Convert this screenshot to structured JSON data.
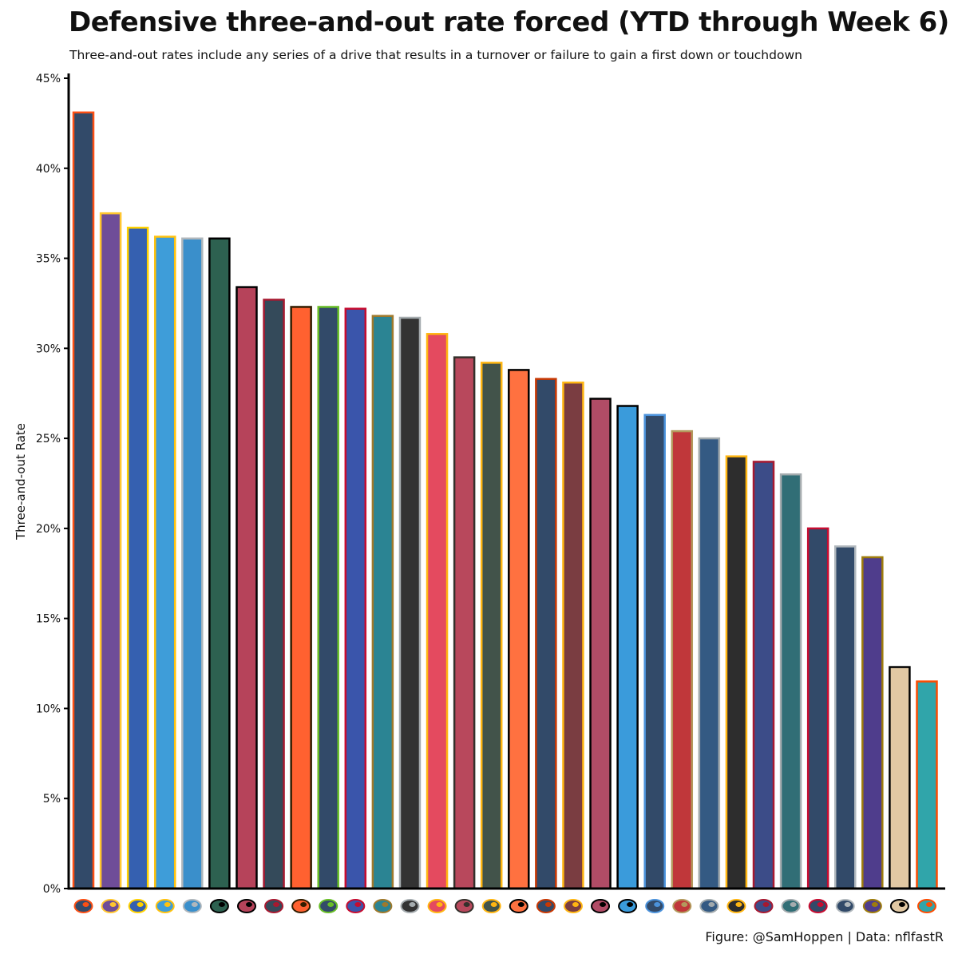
{
  "header": {
    "title": "Defensive three-and-out rate forced (YTD through Week 6)",
    "subtitle": "Three-and-out rates include any series of a drive that results in a turnover or failure to gain a first down or touchdown"
  },
  "caption": "Figure: @SamHoppen | Data: nflfastR",
  "chart_data": {
    "type": "bar",
    "title": "Defensive three-and-out rate forced (YTD through Week 6)",
    "ylabel": "Three-and-out Rate",
    "xlabel": "",
    "ylim": [
      0,
      45
    ],
    "yticks": [
      {
        "value": 0,
        "label": "0%"
      },
      {
        "value": 5,
        "label": "5%"
      },
      {
        "value": 10,
        "label": "10%"
      },
      {
        "value": 15,
        "label": "15%"
      },
      {
        "value": 20,
        "label": "20%"
      },
      {
        "value": 25,
        "label": "25%"
      },
      {
        "value": 30,
        "label": "30%"
      },
      {
        "value": 35,
        "label": "35%"
      },
      {
        "value": 40,
        "label": "40%"
      },
      {
        "value": 45,
        "label": "45%"
      }
    ],
    "grid": false,
    "categories": [
      "DEN",
      "MIN",
      "LA",
      "LAC",
      "DET",
      "NYJ",
      "ATL",
      "HOU",
      "CLE",
      "SEA",
      "BUF",
      "JAX",
      "LV",
      "KC",
      "TB",
      "GB",
      "CIN",
      "CHI",
      "WAS",
      "ARI",
      "CAR",
      "TEN",
      "SF",
      "IND",
      "PIT",
      "NYG",
      "PHI",
      "NE",
      "DAL",
      "BAL",
      "NO",
      "MIA"
    ],
    "values": [
      43.1,
      37.5,
      36.7,
      36.2,
      36.1,
      36.1,
      33.4,
      32.7,
      32.3,
      32.3,
      32.2,
      31.8,
      31.7,
      30.8,
      29.5,
      29.2,
      28.8,
      28.3,
      28.1,
      27.2,
      26.8,
      26.3,
      25.4,
      25.0,
      24.0,
      23.7,
      23.0,
      20.0,
      19.0,
      18.4,
      12.3,
      11.5
    ],
    "fill_colors": [
      "#324a69",
      "#6f4d98",
      "#3560b0",
      "#3e9dd9",
      "#3a8fcb",
      "#2d6150",
      "#b6435a",
      "#344a5a",
      "#ff6130",
      "#324a69",
      "#3a55ab",
      "#2b8493",
      "#333333",
      "#e44a5f",
      "#b8485c",
      "#42534a",
      "#ff7140",
      "#324a69",
      "#7a3d41",
      "#b14c66",
      "#3a9bdb",
      "#324a69",
      "#c0373a",
      "#345a83",
      "#2d2d2d",
      "#3c4c88",
      "#316e76",
      "#324a69",
      "#324a69",
      "#4f3d8c",
      "#e1c8a3",
      "#30a5aa"
    ],
    "border_colors": [
      "#fb4f14",
      "#ffc62f",
      "#ffd100",
      "#ffc20e",
      "#b0b7bc",
      "#000000",
      "#000000",
      "#a71930",
      "#311d00",
      "#69be28",
      "#c60c30",
      "#9f792c",
      "#a5acaf",
      "#ffb612",
      "#34302b",
      "#ffb612",
      "#000000",
      "#c83803",
      "#ffb612",
      "#000000",
      "#000000",
      "#4b92db",
      "#b3995d",
      "#a2aaad",
      "#ffb612",
      "#a71930",
      "#a5acaf",
      "#c60c30",
      "#b0b7bc",
      "#9e7c0c",
      "#000000",
      "#fc4c02"
    ],
    "logo_icons": [
      "broncos-icon",
      "vikings-icon",
      "rams-icon",
      "chargers-icon",
      "lions-icon",
      "jets-icon",
      "falcons-icon",
      "texans-icon",
      "browns-icon",
      "seahawks-icon",
      "bills-icon",
      "jaguars-icon",
      "raiders-icon",
      "chiefs-icon",
      "buccaneers-icon",
      "packers-icon",
      "bengals-icon",
      "bears-icon",
      "washington-icon",
      "cardinals-icon",
      "panthers-icon",
      "titans-icon",
      "49ers-icon",
      "colts-icon",
      "steelers-icon",
      "giants-icon",
      "eagles-icon",
      "patriots-icon",
      "cowboys-icon",
      "ravens-icon",
      "saints-icon",
      "dolphins-icon"
    ],
    "legend": "none"
  }
}
